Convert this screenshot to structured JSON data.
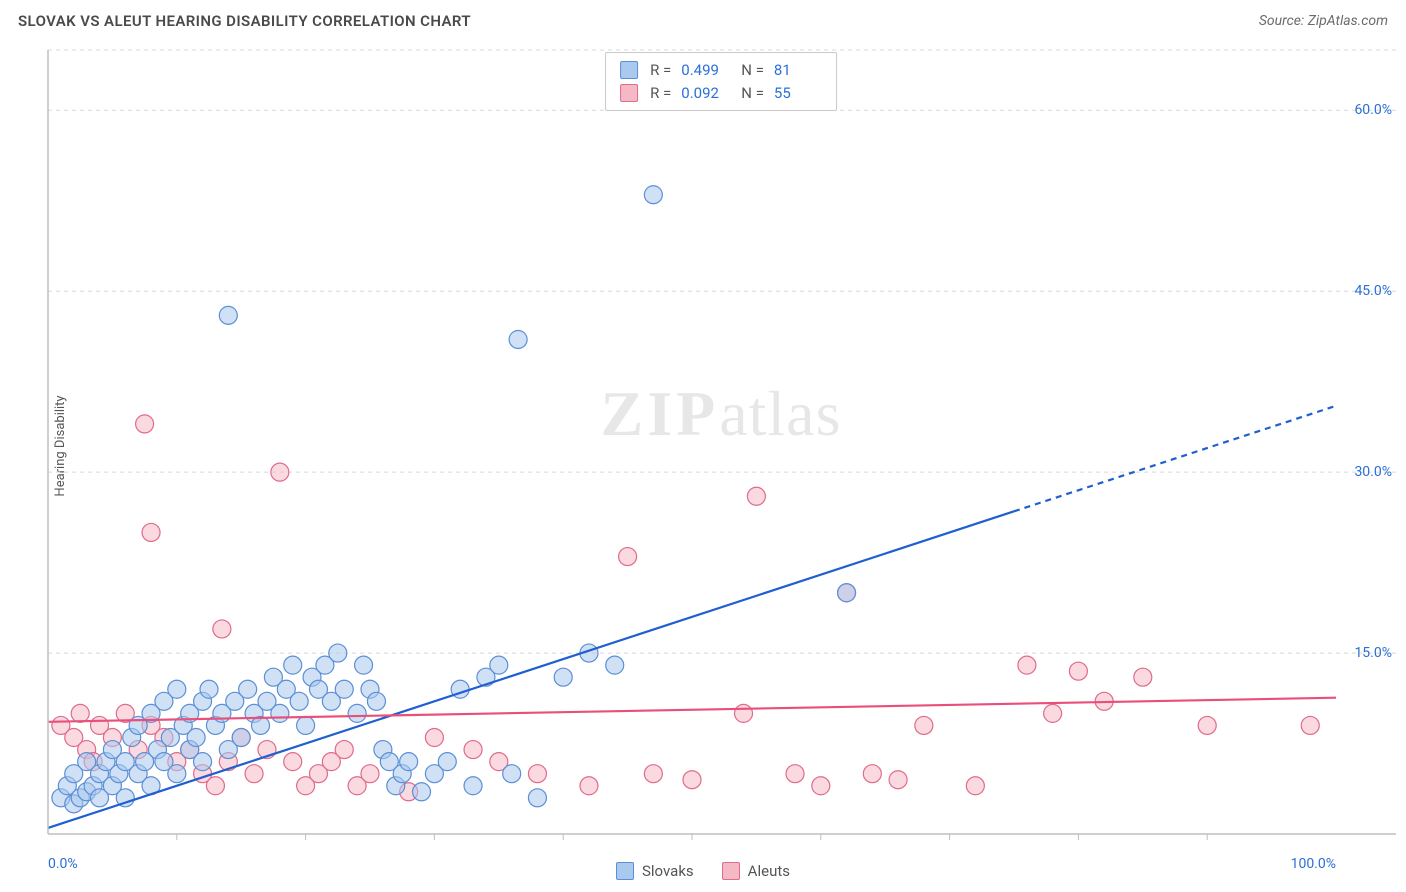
{
  "header": {
    "title": "SLOVAK VS ALEUT HEARING DISABILITY CORRELATION CHART",
    "source": "Source: ZipAtlas.com"
  },
  "watermark": {
    "bold": "ZIP",
    "light": "atlas"
  },
  "ylabel": "Hearing Disability",
  "chart": {
    "type": "scatter",
    "xlim": [
      0,
      100
    ],
    "ylim": [
      0,
      65
    ],
    "x_ticks": [
      0,
      100
    ],
    "x_tick_labels": [
      "0.0%",
      "100.0%"
    ],
    "x_minor_ticks": [
      10,
      20,
      30,
      40,
      50,
      60,
      70,
      80,
      90
    ],
    "y_ticks": [
      15,
      30,
      45,
      60
    ],
    "y_tick_labels": [
      "15.0%",
      "30.0%",
      "45.0%",
      "60.0%"
    ],
    "background_color": "#ffffff",
    "grid_color": "#d8d8d8",
    "axis_color": "#bfbfbf",
    "marker_radius": 9,
    "marker_stroke_width": 1.2,
    "series": [
      {
        "name": "Slovaks",
        "fill": "#a9c9ef",
        "fill_opacity": 0.55,
        "stroke": "#5b8fd6",
        "trend": {
          "slope": 0.35,
          "intercept": 0.5,
          "color": "#1f5fd0",
          "width": 2.2,
          "dash_after_x": 75
        },
        "stats": {
          "R": "0.499",
          "N": "81"
        },
        "points": [
          [
            1,
            3
          ],
          [
            1.5,
            4
          ],
          [
            2,
            2.5
          ],
          [
            2,
            5
          ],
          [
            2.5,
            3
          ],
          [
            3,
            3.5
          ],
          [
            3,
            6
          ],
          [
            3.5,
            4
          ],
          [
            4,
            5
          ],
          [
            4,
            3
          ],
          [
            4.5,
            6
          ],
          [
            5,
            4
          ],
          [
            5,
            7
          ],
          [
            5.5,
            5
          ],
          [
            6,
            6
          ],
          [
            6,
            3
          ],
          [
            6.5,
            8
          ],
          [
            7,
            5
          ],
          [
            7,
            9
          ],
          [
            7.5,
            6
          ],
          [
            8,
            4
          ],
          [
            8,
            10
          ],
          [
            8.5,
            7
          ],
          [
            9,
            6
          ],
          [
            9,
            11
          ],
          [
            9.5,
            8
          ],
          [
            10,
            5
          ],
          [
            10,
            12
          ],
          [
            10.5,
            9
          ],
          [
            11,
            7
          ],
          [
            11,
            10
          ],
          [
            11.5,
            8
          ],
          [
            12,
            6
          ],
          [
            12,
            11
          ],
          [
            12.5,
            12
          ],
          [
            13,
            9
          ],
          [
            13.5,
            10
          ],
          [
            14,
            7
          ],
          [
            14,
            43
          ],
          [
            14.5,
            11
          ],
          [
            15,
            8
          ],
          [
            15.5,
            12
          ],
          [
            16,
            10
          ],
          [
            16.5,
            9
          ],
          [
            17,
            11
          ],
          [
            17.5,
            13
          ],
          [
            18,
            10
          ],
          [
            18.5,
            12
          ],
          [
            19,
            14
          ],
          [
            19.5,
            11
          ],
          [
            20,
            9
          ],
          [
            20.5,
            13
          ],
          [
            21,
            12
          ],
          [
            21.5,
            14
          ],
          [
            22,
            11
          ],
          [
            22.5,
            15
          ],
          [
            23,
            12
          ],
          [
            24,
            10
          ],
          [
            24.5,
            14
          ],
          [
            25,
            12
          ],
          [
            25.5,
            11
          ],
          [
            26,
            7
          ],
          [
            26.5,
            6
          ],
          [
            27,
            4
          ],
          [
            27.5,
            5
          ],
          [
            28,
            6
          ],
          [
            29,
            3.5
          ],
          [
            30,
            5
          ],
          [
            31,
            6
          ],
          [
            32,
            12
          ],
          [
            33,
            4
          ],
          [
            34,
            13
          ],
          [
            35,
            14
          ],
          [
            36,
            5
          ],
          [
            36.5,
            41
          ],
          [
            38,
            3
          ],
          [
            40,
            13
          ],
          [
            42,
            15
          ],
          [
            44,
            14
          ],
          [
            47,
            53
          ],
          [
            62,
            20
          ]
        ]
      },
      {
        "name": "Aleuts",
        "fill": "#f5b9c6",
        "fill_opacity": 0.55,
        "stroke": "#e06b8a",
        "trend": {
          "slope": 0.02,
          "intercept": 9.3,
          "color": "#e94f7a",
          "width": 2.2,
          "dash_after_x": 100
        },
        "stats": {
          "R": "0.092",
          "N": "55"
        },
        "points": [
          [
            1,
            9
          ],
          [
            2,
            8
          ],
          [
            2.5,
            10
          ],
          [
            3,
            7
          ],
          [
            3.5,
            6
          ],
          [
            4,
            9
          ],
          [
            5,
            8
          ],
          [
            6,
            10
          ],
          [
            7,
            7
          ],
          [
            7.5,
            34
          ],
          [
            8,
            9
          ],
          [
            8,
            25
          ],
          [
            9,
            8
          ],
          [
            10,
            6
          ],
          [
            11,
            7
          ],
          [
            12,
            5
          ],
          [
            13,
            4
          ],
          [
            13.5,
            17
          ],
          [
            14,
            6
          ],
          [
            15,
            8
          ],
          [
            16,
            5
          ],
          [
            17,
            7
          ],
          [
            18,
            30
          ],
          [
            19,
            6
          ],
          [
            20,
            4
          ],
          [
            21,
            5
          ],
          [
            22,
            6
          ],
          [
            23,
            7
          ],
          [
            24,
            4
          ],
          [
            25,
            5
          ],
          [
            28,
            3.5
          ],
          [
            30,
            8
          ],
          [
            33,
            7
          ],
          [
            35,
            6
          ],
          [
            38,
            5
          ],
          [
            42,
            4
          ],
          [
            45,
            23
          ],
          [
            47,
            5
          ],
          [
            50,
            4.5
          ],
          [
            54,
            10
          ],
          [
            55,
            28
          ],
          [
            58,
            5
          ],
          [
            60,
            4
          ],
          [
            62,
            20
          ],
          [
            64,
            5
          ],
          [
            66,
            4.5
          ],
          [
            68,
            9
          ],
          [
            72,
            4
          ],
          [
            76,
            14
          ],
          [
            78,
            10
          ],
          [
            80,
            13.5
          ],
          [
            82,
            11
          ],
          [
            85,
            13
          ],
          [
            90,
            9
          ],
          [
            98,
            9
          ]
        ]
      }
    ]
  },
  "legend_bottom": [
    {
      "label": "Slovaks",
      "fill": "#a9c9ef",
      "stroke": "#5b8fd6"
    },
    {
      "label": "Aleuts",
      "fill": "#f5b9c6",
      "stroke": "#e06b8a"
    }
  ]
}
